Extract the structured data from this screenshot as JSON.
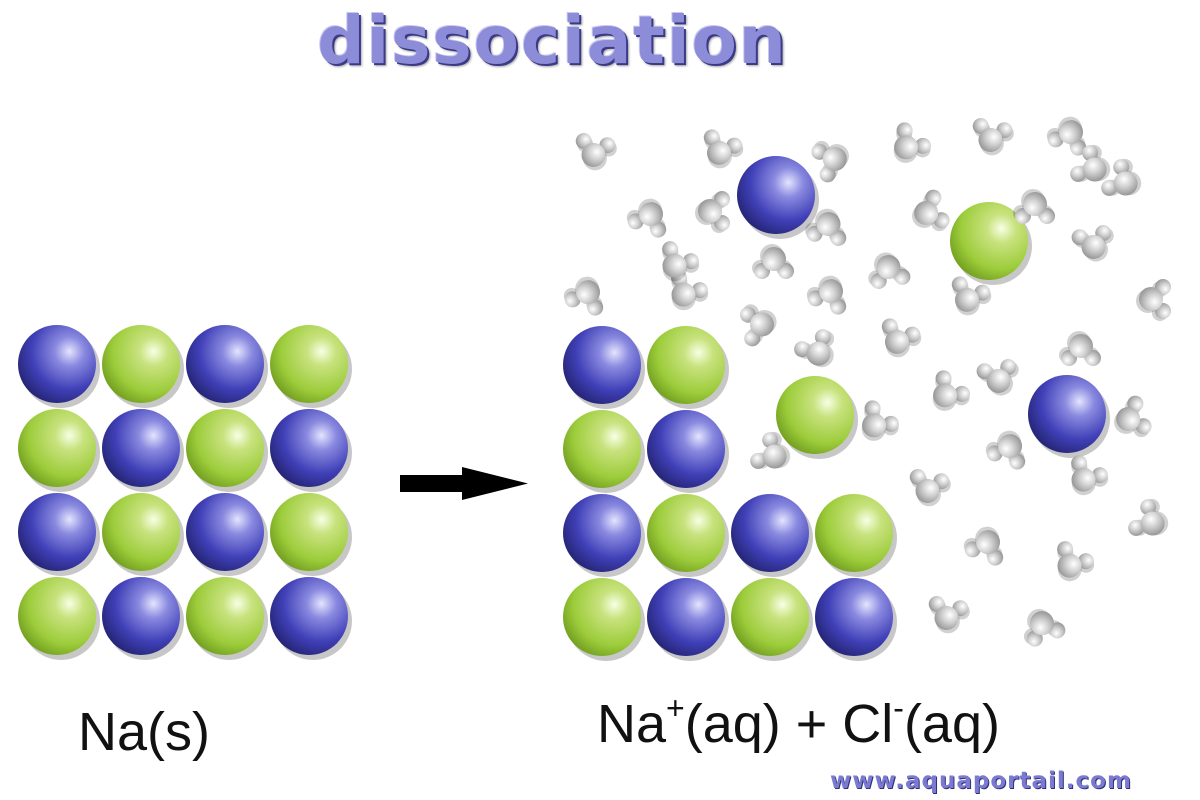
{
  "title": "dissociation",
  "labels": {
    "left": "Na(s)",
    "right": {
      "ion1": "Na",
      "ion1_charge": "+",
      "state1": "(aq) + Cl",
      "ion2_charge": "-",
      "state2": "(aq)"
    }
  },
  "watermark": "www.aquaportail.com",
  "colors": {
    "sodium": "#4a4ac4",
    "chloride": "#a8d045",
    "water": "#c8c8c8",
    "title": "#8c8cd8",
    "arrow": "#000000"
  },
  "lattice_left": [
    [
      "Na",
      "Cl",
      "Na",
      "Cl"
    ],
    [
      "Cl",
      "Na",
      "Cl",
      "Na"
    ],
    [
      "Na",
      "Cl",
      "Na",
      "Cl"
    ],
    [
      "Cl",
      "Na",
      "Cl",
      "Na"
    ]
  ],
  "lattice_right": [
    [
      "Na",
      "Cl",
      null,
      null
    ],
    [
      "Cl",
      "Na",
      null,
      null
    ],
    [
      "Na",
      "Cl",
      "Na",
      "Cl"
    ],
    [
      "Cl",
      "Na",
      "Cl",
      "Na"
    ]
  ]
}
